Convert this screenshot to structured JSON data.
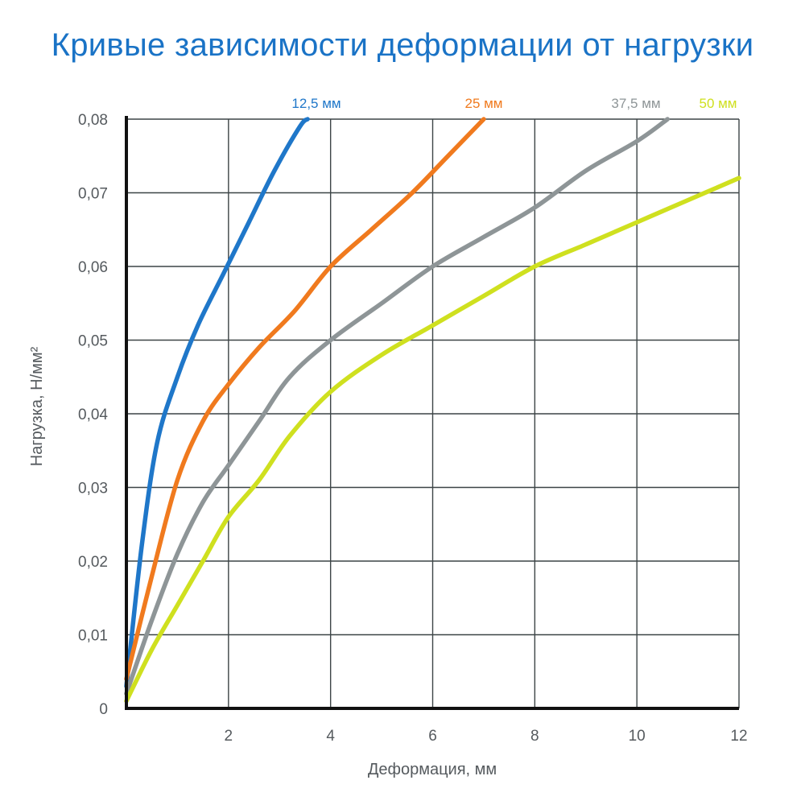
{
  "chart_data": {
    "type": "line",
    "title": "Кривые зависимости деформации от нагрузки",
    "xlabel": "Деформация, мм",
    "ylabel": "Нагрузка, Н/мм²",
    "xlim": [
      0,
      12
    ],
    "ylim": [
      0,
      0.08
    ],
    "x_ticks": [
      2,
      4,
      6,
      8,
      10,
      12
    ],
    "x_tick_labels": [
      "2",
      "4",
      "6",
      "8",
      "10",
      "12"
    ],
    "y_ticks": [
      0,
      0.01,
      0.02,
      0.03,
      0.04,
      0.05,
      0.06,
      0.07,
      0.08
    ],
    "y_tick_labels": [
      "0",
      "0,01",
      "0,02",
      "0,03",
      "0,04",
      "0,05",
      "0,06",
      "0,07",
      "0,08"
    ],
    "grid": true,
    "legend_placement": "top",
    "series": [
      {
        "name": "12,5 мм",
        "color": "#1f77c9",
        "x": [
          0,
          0.3,
          0.6,
          1.0,
          1.4,
          1.9,
          2.4,
          2.9,
          3.4,
          3.55
        ],
        "y": [
          0.003,
          0.022,
          0.036,
          0.045,
          0.052,
          0.059,
          0.066,
          0.073,
          0.079,
          0.08
        ]
      },
      {
        "name": "25 мм",
        "color": "#f07a1e",
        "x": [
          0,
          0.5,
          1.0,
          1.5,
          2.0,
          2.6,
          3.3,
          4.0,
          4.8,
          5.6,
          6.3,
          7.0
        ],
        "y": [
          0.004,
          0.018,
          0.031,
          0.039,
          0.044,
          0.049,
          0.054,
          0.06,
          0.065,
          0.07,
          0.075,
          0.08
        ]
      },
      {
        "name": "37,5 мм",
        "color": "#8e9597",
        "x": [
          0,
          0.5,
          1.0,
          1.5,
          2.0,
          2.6,
          3.2,
          4.0,
          5.0,
          6.0,
          7.0,
          8.0,
          9.0,
          10.0,
          10.6
        ],
        "y": [
          0.002,
          0.012,
          0.021,
          0.028,
          0.033,
          0.039,
          0.045,
          0.05,
          0.055,
          0.06,
          0.064,
          0.068,
          0.073,
          0.077,
          0.08
        ]
      },
      {
        "name": "50 мм",
        "color": "#cfe01f",
        "x": [
          0,
          0.5,
          1.0,
          1.5,
          2.0,
          2.6,
          3.2,
          4.0,
          5.0,
          6.0,
          7.0,
          8.0,
          9.0,
          10.0,
          11.0,
          12.0
        ],
        "y": [
          0.001,
          0.008,
          0.014,
          0.02,
          0.026,
          0.031,
          0.037,
          0.043,
          0.048,
          0.052,
          0.056,
          0.06,
          0.063,
          0.066,
          0.069,
          0.072
        ]
      }
    ]
  }
}
